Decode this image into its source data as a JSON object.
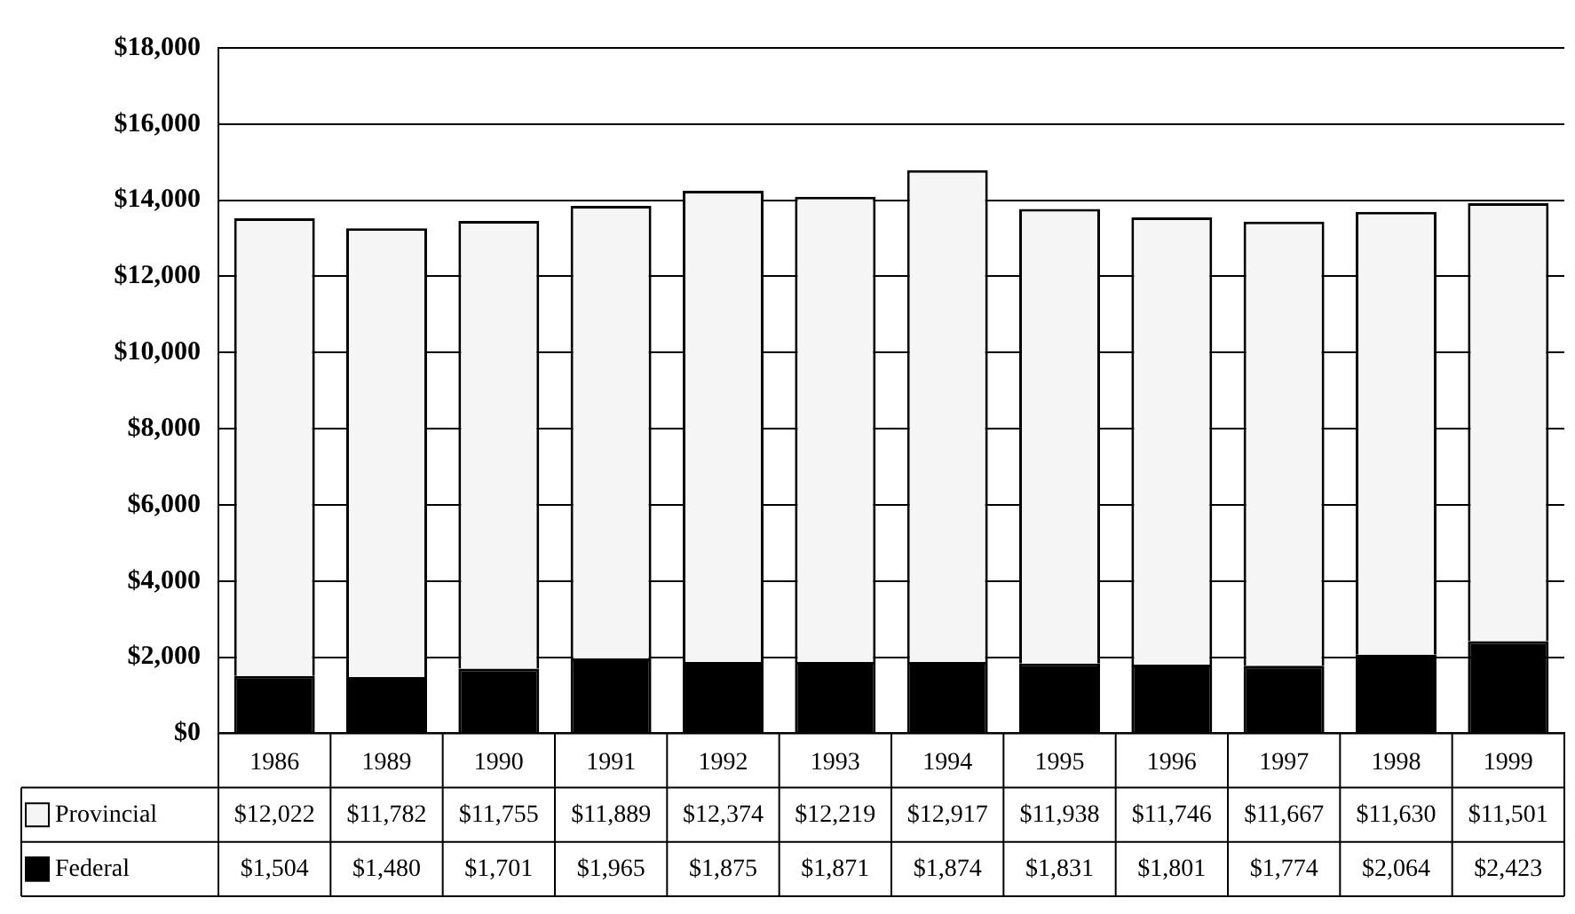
{
  "chart_data": {
    "type": "bar",
    "stacked": true,
    "categories": [
      "1986",
      "1989",
      "1990",
      "1991",
      "1992",
      "1993",
      "1994",
      "1995",
      "1996",
      "1997",
      "1998",
      "1999"
    ],
    "series": [
      {
        "name": "Federal",
        "color": "#000000",
        "values": [
          1504,
          1480,
          1701,
          1965,
          1875,
          1871,
          1874,
          1831,
          1801,
          1774,
          2064,
          2423
        ],
        "value_labels": [
          "$1,504",
          "$1,480",
          "$1,701",
          "$1,965",
          "$1,875",
          "$1,871",
          "$1,874",
          "$1,831",
          "$1,801",
          "$1,774",
          "$2,064",
          "$2,423"
        ]
      },
      {
        "name": "Provincial",
        "color": "#f5f5f5",
        "values": [
          12022,
          11782,
          11755,
          11889,
          12374,
          12219,
          12917,
          11938,
          11746,
          11667,
          11630,
          11501
        ],
        "value_labels": [
          "$12,022",
          "$11,782",
          "$11,755",
          "$11,889",
          "$12,374",
          "$12,219",
          "$12,917",
          "$11,938",
          "$11,746",
          "$11,667",
          "$11,630",
          "$11,501"
        ]
      }
    ],
    "ylim": [
      0,
      18000
    ],
    "yticks": [
      {
        "value": 0,
        "label": "$0"
      },
      {
        "value": 2000,
        "label": "$2,000"
      },
      {
        "value": 4000,
        "label": "$4,000"
      },
      {
        "value": 6000,
        "label": "$6,000"
      },
      {
        "value": 8000,
        "label": "$8,000"
      },
      {
        "value": 10000,
        "label": "$10,000"
      },
      {
        "value": 12000,
        "label": "$12,000"
      },
      {
        "value": 14000,
        "label": "$14,000"
      },
      {
        "value": 16000,
        "label": "$16,000"
      },
      {
        "value": 18000,
        "label": "$18,000"
      }
    ],
    "grid": "y",
    "legend": "bottom"
  }
}
